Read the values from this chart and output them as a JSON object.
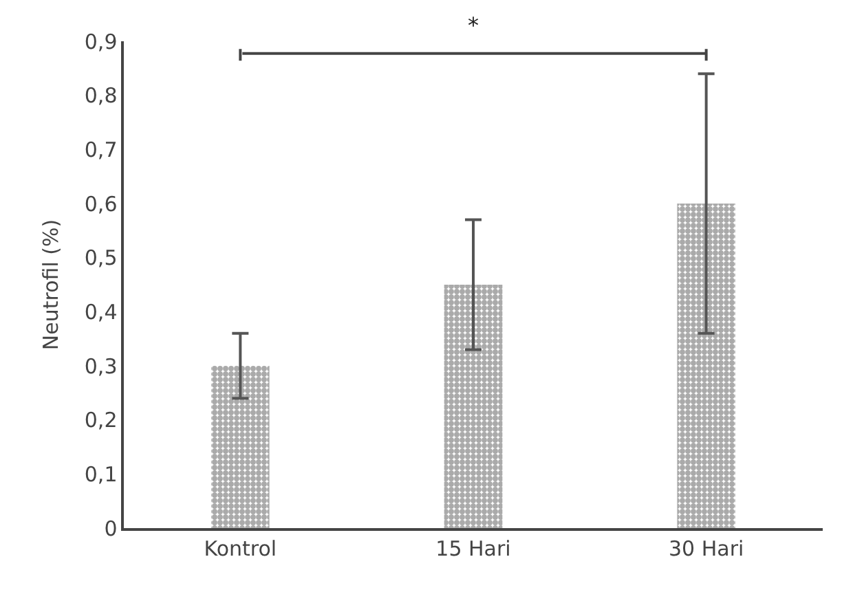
{
  "chart_data": {
    "type": "bar",
    "ylabel": "Neutrofil (%)",
    "categories": [
      "Kontrol",
      "15 Hari",
      "30 Hari"
    ],
    "values": [
      0.3,
      0.45,
      0.6
    ],
    "errors": [
      0.06,
      0.12,
      0.24
    ],
    "color": "#555555",
    "ylim": [
      0,
      0.9
    ],
    "yticks": [
      {
        "value": 0,
        "label": "0"
      },
      {
        "value": 0.1,
        "label": "0,1"
      },
      {
        "value": 0.2,
        "label": "0,2"
      },
      {
        "value": 0.3,
        "label": "0,3"
      },
      {
        "value": 0.4,
        "label": "0,4"
      },
      {
        "value": 0.5,
        "label": "0,5"
      },
      {
        "value": 0.6,
        "label": "0,6"
      },
      {
        "value": 0.7,
        "label": "0,7"
      },
      {
        "value": 0.8,
        "label": "0,8"
      },
      {
        "value": 0.9,
        "label": "0,9"
      }
    ],
    "annotations": [
      "*"
    ]
  }
}
